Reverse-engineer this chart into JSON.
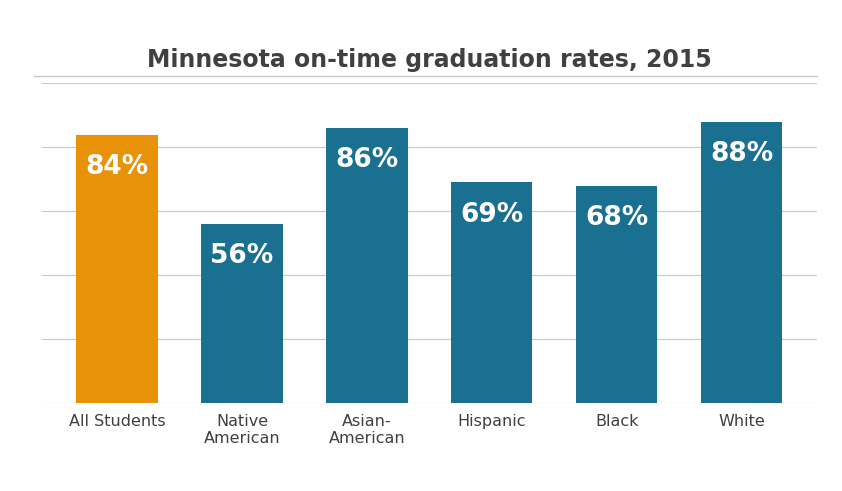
{
  "title": "Minnesota on-time graduation rates, 2015",
  "categories": [
    "All Students",
    "Native\nAmerican",
    "Asian-\nAmerican",
    "Hispanic",
    "Black",
    "White"
  ],
  "values": [
    84,
    56,
    86,
    69,
    68,
    88
  ],
  "labels": [
    "84%",
    "56%",
    "86%",
    "69%",
    "68%",
    "88%"
  ],
  "bar_colors": [
    "#E8920A",
    "#1A7090",
    "#1A7090",
    "#1A7090",
    "#1A7090",
    "#1A7090"
  ],
  "label_color": "#ffffff",
  "title_color": "#404040",
  "background_color": "#ffffff",
  "ylim": [
    0,
    100
  ],
  "title_fontsize": 17,
  "label_fontsize": 19,
  "tick_fontsize": 11.5,
  "grid_color": "#c8c8c8",
  "bar_width": 0.65
}
